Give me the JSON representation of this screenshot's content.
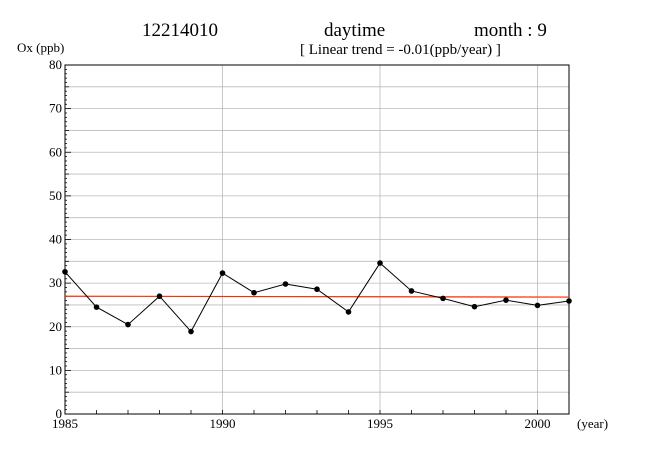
{
  "header": {
    "station": "12214010",
    "period": "daytime",
    "month": "month : 9",
    "trend": "[ Linear trend = -0.01(ppb/year) ]"
  },
  "chart_data": {
    "type": "line",
    "ylabel": "Ox (ppb)",
    "xlabel": "(year)",
    "xlim": [
      1985,
      2001
    ],
    "ylim": [
      0,
      80
    ],
    "x_ticks": [
      1985,
      1990,
      1995,
      2000
    ],
    "y_ticks": [
      0,
      10,
      20,
      30,
      40,
      50,
      60,
      70,
      80
    ],
    "grid": true,
    "series": [
      {
        "color": "#000000",
        "x": [
          1985,
          1986,
          1987,
          1988,
          1989,
          1990,
          1991,
          1992,
          1993,
          1994,
          1995,
          1996,
          1997,
          1998,
          1999,
          2000,
          2001
        ],
        "values": [
          32.6,
          24.5,
          20.5,
          27.0,
          18.9,
          32.3,
          27.8,
          29.8,
          28.6,
          23.4,
          34.6,
          28.2,
          26.5,
          24.6,
          26.1,
          24.9,
          25.9
        ]
      }
    ],
    "trend_line": {
      "color": "#ff2a00",
      "x": [
        1985,
        2001
      ],
      "values": [
        27.0,
        26.8
      ]
    }
  }
}
